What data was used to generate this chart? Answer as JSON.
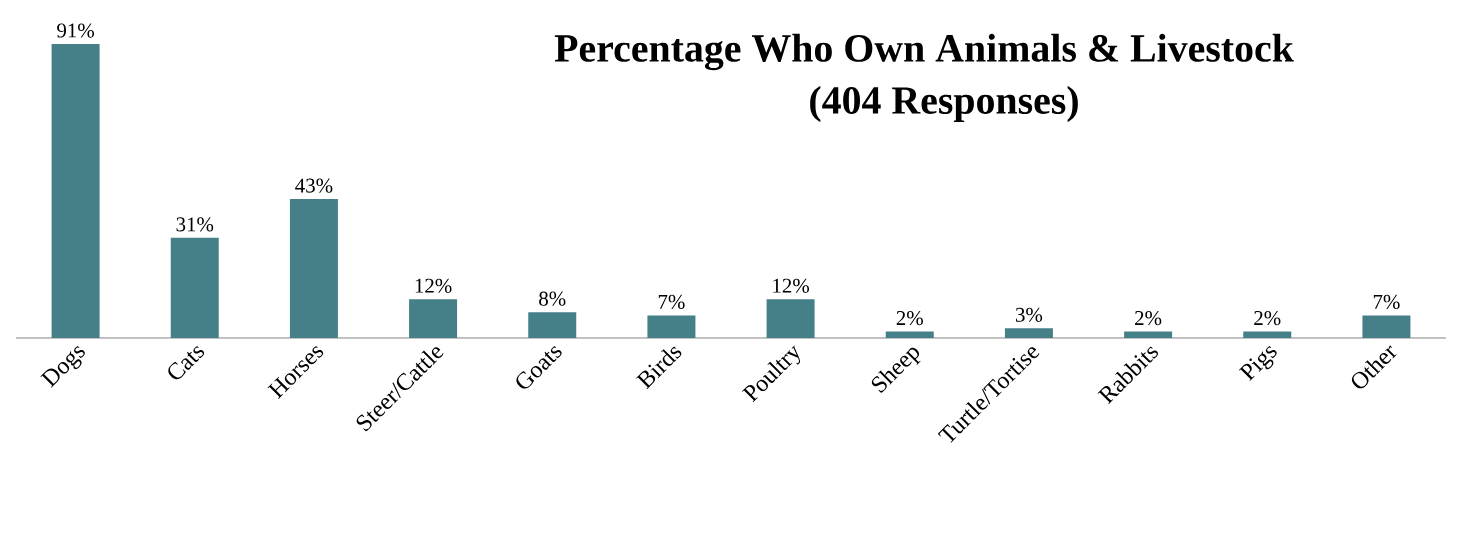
{
  "chart_data": {
    "type": "bar",
    "title": "Percentage Who Own Animals & Livestock",
    "subtitle": "(404 Responses)",
    "categories": [
      "Dogs",
      "Cats",
      "Horses",
      "Steer/Cattle",
      "Goats",
      "Birds",
      "Poultry",
      "Sheep",
      "Turtle/Tortise",
      "Rabbits",
      "Pigs",
      "Other"
    ],
    "values": [
      91,
      31,
      43,
      12,
      8,
      7,
      12,
      2,
      3,
      2,
      2,
      7
    ],
    "value_labels": [
      "91%",
      "31%",
      "43%",
      "12%",
      "8%",
      "7%",
      "12%",
      "2%",
      "3%",
      "2%",
      "2%",
      "7%"
    ],
    "color": "#458088"
  }
}
